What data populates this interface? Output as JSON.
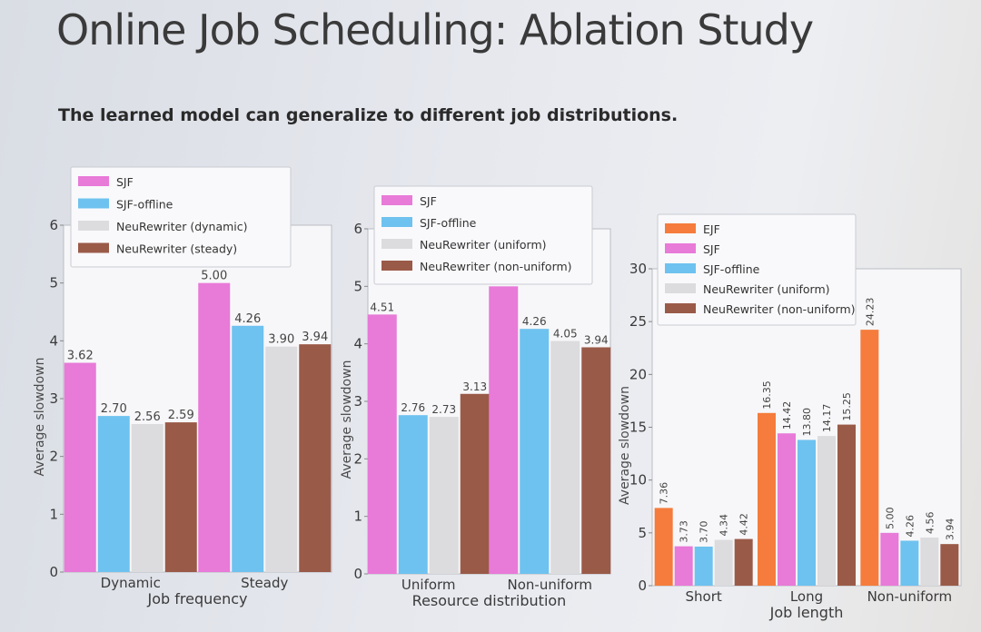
{
  "slide": {
    "title": "Online Job Scheduling: Ablation Study",
    "subtitle": "The learned model can generalize to different job distributions."
  },
  "chart_data": [
    {
      "type": "bar",
      "categories": [
        "Dynamic",
        "Steady"
      ],
      "xlabel": "Job frequency",
      "ylabel": "Average slowdown",
      "ylim": [
        0,
        6
      ],
      "yticks": [
        0,
        1,
        2,
        3,
        4,
        5,
        6
      ],
      "legend_position": "top-left",
      "series": [
        {
          "name": "SJF",
          "color": "#e87ad8",
          "values": [
            3.62,
            5.0
          ]
        },
        {
          "name": "SJF-offline",
          "color": "#6ec2ef",
          "values": [
            2.7,
            4.26
          ]
        },
        {
          "name": "NeuRewriter (dynamic)",
          "color": "#dcdcde",
          "values": [
            2.56,
            3.9
          ]
        },
        {
          "name": "NeuRewriter (steady)",
          "color": "#9a5a48",
          "values": [
            2.59,
            3.94
          ]
        }
      ]
    },
    {
      "type": "bar",
      "categories": [
        "Uniform",
        "Non-uniform"
      ],
      "xlabel": "Resource distribution",
      "ylabel": "Average slowdown",
      "ylim": [
        0,
        6
      ],
      "yticks": [
        0,
        1,
        2,
        3,
        4,
        5,
        6
      ],
      "legend_position": "top-left",
      "series": [
        {
          "name": "SJF",
          "color": "#e87ad8",
          "values": [
            4.51,
            5.0
          ]
        },
        {
          "name": "SJF-offline",
          "color": "#6ec2ef",
          "values": [
            2.76,
            4.26
          ]
        },
        {
          "name": "NeuRewriter (uniform)",
          "color": "#dcdcde",
          "values": [
            2.73,
            4.05
          ]
        },
        {
          "name": "NeuRewriter (non-uniform)",
          "color": "#9a5a48",
          "values": [
            3.13,
            3.94
          ]
        }
      ]
    },
    {
      "type": "bar",
      "categories": [
        "Short",
        "Long",
        "Non-uniform"
      ],
      "xlabel": "Job length",
      "ylabel": "Average slowdown",
      "ylim": [
        0,
        30
      ],
      "yticks": [
        0,
        5,
        10,
        15,
        20,
        25,
        30
      ],
      "legend_position": "top-left",
      "series": [
        {
          "name": "EJF",
          "color": "#f57c3c",
          "values": [
            7.36,
            16.35,
            24.23
          ]
        },
        {
          "name": "SJF",
          "color": "#e87ad8",
          "values": [
            3.73,
            14.42,
            5.0
          ]
        },
        {
          "name": "SJF-offline",
          "color": "#6ec2ef",
          "values": [
            3.7,
            13.8,
            4.26
          ]
        },
        {
          "name": "NeuRewriter (uniform)",
          "color": "#dcdcde",
          "values": [
            4.34,
            14.17,
            4.56
          ]
        },
        {
          "name": "NeuRewriter (non-uniform)",
          "color": "#9a5a48",
          "values": [
            4.42,
            15.25,
            3.94
          ]
        }
      ]
    }
  ]
}
